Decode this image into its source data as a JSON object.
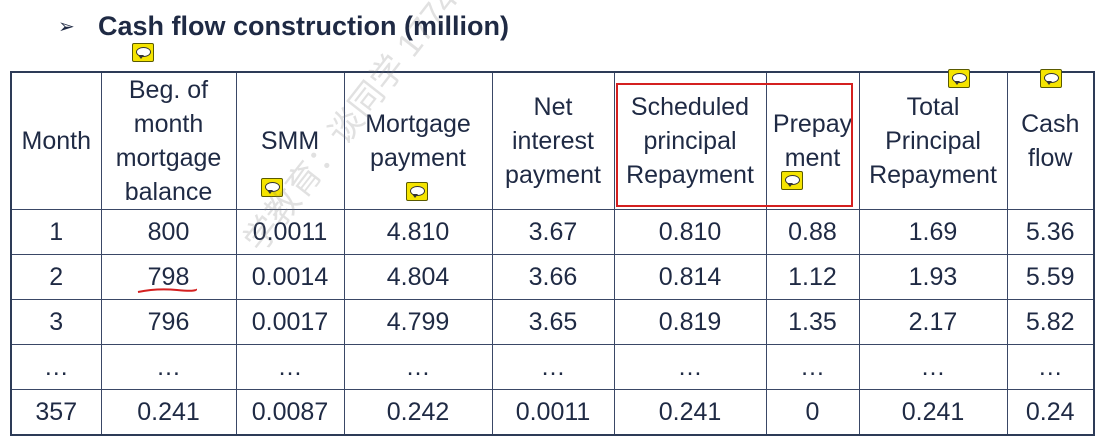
{
  "heading": {
    "bullet": "➢",
    "title": "Cash flow construction (million)"
  },
  "table": {
    "headers": [
      [
        "Month"
      ],
      [
        "Beg. of",
        "month",
        "mortgage",
        "balance"
      ],
      [
        "SMM"
      ],
      [
        "Mortgage",
        "payment"
      ],
      [
        "Net",
        "interest",
        "payment"
      ],
      [
        "Scheduled",
        "principal",
        "Repayment"
      ],
      [
        "Prepay",
        "ment"
      ],
      [
        "Total",
        "Principal",
        "Repayment"
      ],
      [
        "Cash",
        "flow"
      ]
    ],
    "rows": [
      [
        "1",
        "800",
        "0.0011",
        "4.810",
        "3.67",
        "0.810",
        "0.88",
        "1.69",
        "5.36"
      ],
      [
        "2",
        "798",
        "0.0014",
        "4.804",
        "3.66",
        "0.814",
        "1.12",
        "1.93",
        "5.59"
      ],
      [
        "3",
        "796",
        "0.0017",
        "4.799",
        "3.65",
        "0.819",
        "1.35",
        "2.17",
        "5.82"
      ],
      [
        "…",
        "…",
        "…",
        "…",
        "…",
        "…",
        "…",
        "…",
        "…"
      ],
      [
        "357",
        "0.241",
        "0.0087",
        "0.242",
        "0.0011",
        "0.241",
        "0",
        "0.241",
        "0.24"
      ]
    ]
  },
  "watermark": "学教育：谈同学 17740573350",
  "colors": {
    "text": "#1f2a44",
    "border": "#3a4766",
    "highlight": "#d42020",
    "comment": "#f5e400"
  },
  "icons": [
    "comment-icon"
  ]
}
